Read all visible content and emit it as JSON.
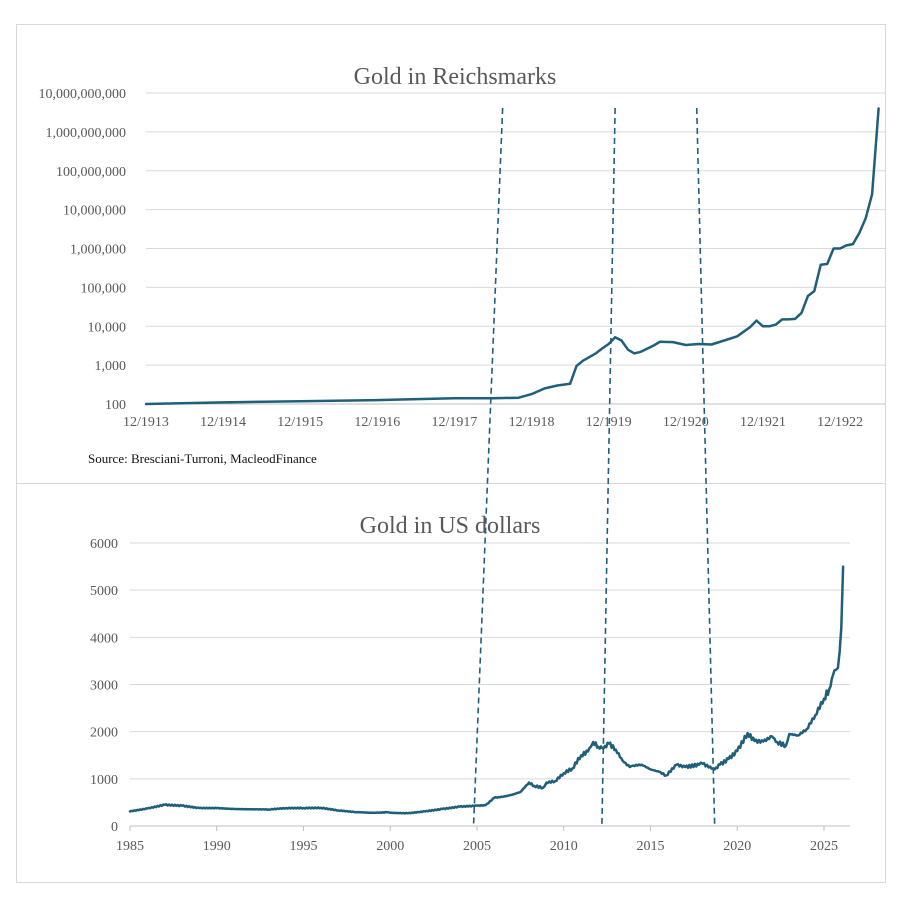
{
  "colors": {
    "series": "#1f5f7a",
    "grid": "#d9d9d9",
    "text": "#595959"
  },
  "chart_data": [
    {
      "type": "line",
      "title": "Gold in Reichsmarks",
      "yscale": "log",
      "ylim": [
        100,
        10000000000
      ],
      "yticks": [
        "100",
        "1,000",
        "10,000",
        "100,000",
        "1,000,000",
        "10,000,000",
        "100,000,000",
        "1,000,000,000",
        "10,000,000,000"
      ],
      "xticks": [
        "12/1913",
        "12/1914",
        "12/1915",
        "12/1916",
        "12/1917",
        "12/1918",
        "12/1919",
        "12/1920",
        "12/1921",
        "12/1922"
      ],
      "xlim": [
        0,
        115
      ],
      "x_unit": "months since 12/1913",
      "source": "Source: Bresciani-Turroni, MacleodFinance",
      "x": [
        0,
        12,
        24,
        36,
        48,
        54,
        58,
        60,
        62,
        64,
        66,
        67,
        68,
        70,
        71,
        72,
        73,
        74,
        75,
        76,
        77,
        79,
        80,
        82,
        84,
        86,
        88,
        90,
        92,
        94,
        95,
        96,
        97,
        98,
        99,
        100,
        101,
        102,
        103,
        104,
        105,
        106,
        107,
        108,
        109,
        110,
        111,
        112,
        113,
        114
      ],
      "values": [
        100,
        110,
        118,
        126,
        140,
        140,
        145,
        180,
        250,
        300,
        330,
        950,
        1300,
        2000,
        2700,
        3500,
        5200,
        4300,
        2500,
        2000,
        2200,
        3200,
        4000,
        3900,
        3300,
        3500,
        3400,
        4300,
        5500,
        9500,
        14000,
        10000,
        10000,
        11000,
        15000,
        15000,
        15500,
        22000,
        60000,
        80000,
        380000,
        400000,
        1000000,
        1000000,
        1200000,
        1300000,
        2500000,
        6000000,
        25000000,
        4000000000
      ],
      "vlines_x": [
        55.5,
        73.0,
        85.7
      ]
    },
    {
      "type": "line",
      "title": "Gold in US dollars",
      "ylim": [
        0,
        6000
      ],
      "yticks": [
        "0",
        "1000",
        "2000",
        "3000",
        "4000",
        "5000",
        "6000"
      ],
      "xticks": [
        "1985",
        "1990",
        "1995",
        "2000",
        "2005",
        "2010",
        "2015",
        "2020",
        "2025"
      ],
      "xlim": [
        1985,
        2026.5
      ],
      "x": [
        1985,
        1986,
        1987,
        1988,
        1989,
        1990,
        1991,
        1993,
        1994,
        1995,
        1996,
        1997,
        1998,
        1999,
        1999.8,
        2000,
        2001,
        2002,
        2003,
        2004,
        2005,
        2005.5,
        2006,
        2006.5,
        2007,
        2007.5,
        2008,
        2008.3,
        2008.8,
        2009,
        2009.5,
        2010,
        2010.5,
        2011,
        2011.4,
        2011.7,
        2012,
        2012.3,
        2012.6,
        2013,
        2013.4,
        2013.8,
        2014,
        2014.5,
        2015,
        2015.5,
        2015.9,
        2016.5,
        2017,
        2017.8,
        2018,
        2018.7,
        2019,
        2019.5,
        2020,
        2020.6,
        2021,
        2021.5,
        2022,
        2022.3,
        2022.8,
        2023,
        2023.5,
        2024,
        2024.5,
        2025,
        2025.3,
        2025.6,
        2025.8,
        2026,
        2026.1
      ],
      "values": [
        310,
        370,
        450,
        430,
        380,
        380,
        360,
        350,
        380,
        380,
        385,
        330,
        295,
        280,
        290,
        280,
        270,
        310,
        360,
        410,
        430,
        440,
        600,
        620,
        660,
        720,
        920,
        850,
        810,
        920,
        950,
        1120,
        1220,
        1500,
        1580,
        1780,
        1680,
        1650,
        1750,
        1620,
        1380,
        1250,
        1280,
        1300,
        1200,
        1150,
        1070,
        1300,
        1250,
        1300,
        1320,
        1200,
        1300,
        1420,
        1590,
        1970,
        1800,
        1790,
        1900,
        1780,
        1700,
        1950,
        1920,
        2050,
        2350,
        2700,
        2900,
        3300,
        3350,
        4200,
        5500
      ],
      "vlines_x": [
        2004.8,
        2012.2,
        2018.7
      ]
    }
  ]
}
